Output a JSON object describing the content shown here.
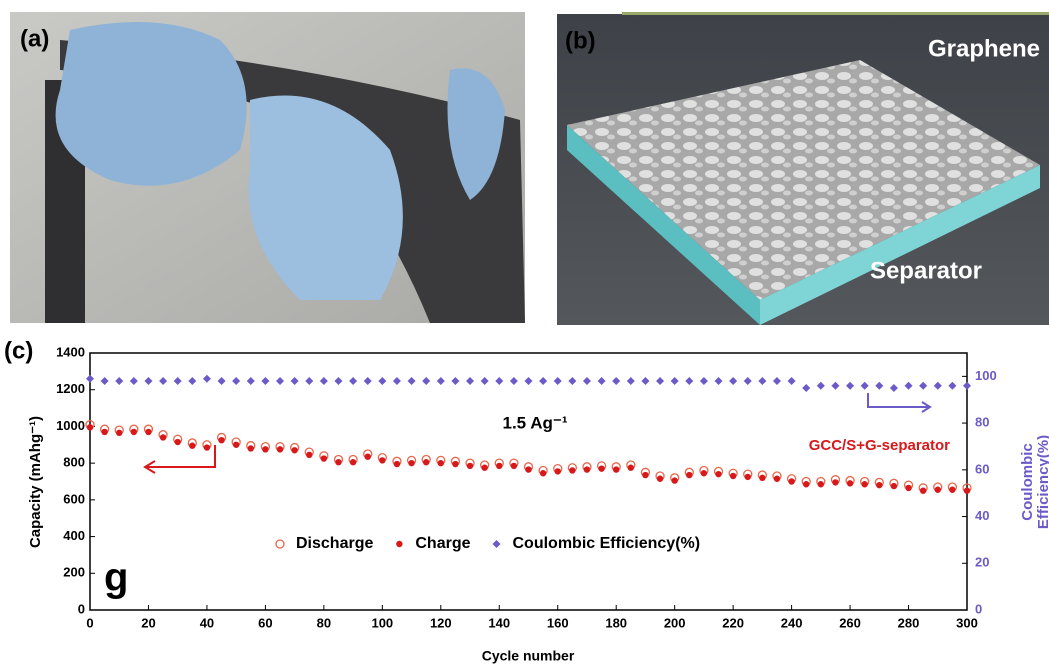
{
  "panels": {
    "a": {
      "label": "(a)"
    },
    "b": {
      "label": "(b)",
      "top_text": "Graphene",
      "bottom_text": "Separator"
    }
  },
  "chart_data": {
    "type": "scatter",
    "panel_label": "(c)",
    "corner_label": "g",
    "xlabel": "Cycle number",
    "ylabel": "Capacity (mAhg⁻¹)",
    "y2label": [
      "Coulombic",
      "Efficiency(%)"
    ],
    "annotations": [
      "1.5 Ag⁻¹",
      "GCC/S+G-separator"
    ],
    "x": [
      0,
      5,
      10,
      15,
      20,
      25,
      30,
      35,
      40,
      45,
      50,
      55,
      60,
      65,
      70,
      75,
      80,
      85,
      90,
      95,
      100,
      105,
      110,
      115,
      120,
      125,
      130,
      135,
      140,
      145,
      150,
      155,
      160,
      165,
      170,
      175,
      180,
      185,
      190,
      195,
      200,
      205,
      210,
      215,
      220,
      225,
      230,
      235,
      240,
      245,
      250,
      255,
      260,
      265,
      270,
      275,
      280,
      285,
      290,
      295,
      300
    ],
    "series": [
      {
        "name": "Discharge",
        "color": "#e8664a",
        "marker": "open-circle",
        "values": [
          1010,
          985,
          980,
          985,
          985,
          955,
          930,
          910,
          900,
          940,
          915,
          895,
          890,
          890,
          885,
          860,
          840,
          820,
          820,
          850,
          830,
          810,
          815,
          820,
          815,
          810,
          800,
          790,
          800,
          800,
          780,
          760,
          770,
          775,
          780,
          785,
          780,
          790,
          750,
          730,
          720,
          750,
          760,
          755,
          745,
          740,
          735,
          730,
          715,
          700,
          700,
          710,
          705,
          700,
          695,
          690,
          680,
          665,
          670,
          670,
          665
        ]
      },
      {
        "name": "Charge",
        "color": "#d7191c",
        "marker": "circle",
        "values": [
          995,
          970,
          965,
          970,
          970,
          940,
          915,
          895,
          885,
          925,
          900,
          880,
          875,
          875,
          870,
          845,
          825,
          805,
          805,
          835,
          815,
          795,
          800,
          805,
          800,
          795,
          785,
          775,
          785,
          785,
          765,
          745,
          755,
          760,
          765,
          770,
          765,
          775,
          735,
          715,
          705,
          735,
          745,
          740,
          730,
          725,
          720,
          715,
          700,
          685,
          685,
          695,
          690,
          685,
          680,
          675,
          665,
          650,
          655,
          655,
          650
        ]
      },
      {
        "name": "Coulombic Efficiency(%)",
        "color": "#6b5bc8",
        "marker": "diamond",
        "axis": "y2",
        "values": [
          99,
          98,
          98,
          98,
          98,
          98,
          98,
          98,
          99,
          98,
          98,
          98,
          98,
          98,
          98,
          98,
          98,
          98,
          98,
          98,
          98,
          98,
          98,
          98,
          98,
          98,
          98,
          98,
          98,
          98,
          98,
          98,
          98,
          98,
          98,
          98,
          98,
          98,
          98,
          98,
          98,
          98,
          98,
          98,
          98,
          98,
          98,
          98,
          98,
          95,
          96,
          96,
          96,
          96,
          96,
          95,
          96,
          96,
          96,
          96,
          96
        ]
      }
    ],
    "xlim": [
      0,
      300
    ],
    "xticks": [
      0,
      20,
      40,
      60,
      80,
      100,
      120,
      140,
      160,
      180,
      200,
      220,
      240,
      260,
      280,
      300
    ],
    "ylim": [
      0,
      1400
    ],
    "yticks": [
      0,
      200,
      400,
      600,
      800,
      1000,
      1200,
      1400
    ],
    "y2lim": [
      0,
      110
    ],
    "y2ticks": [
      0,
      20,
      40,
      60,
      80,
      100
    ],
    "legend": "lower center",
    "grid": false
  }
}
